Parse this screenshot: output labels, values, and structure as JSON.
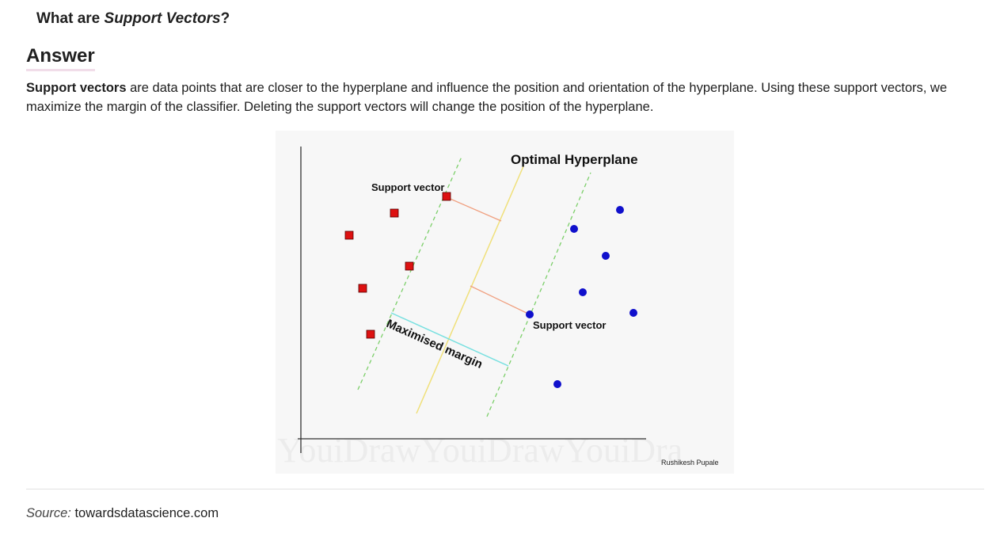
{
  "question": {
    "prefix": "What are ",
    "emphasis": "Support Vectors",
    "suffix": "?"
  },
  "answer": {
    "heading": "Answer",
    "bold_term": "Support vectors",
    "text": " are data points that are closer to the hyperplane and influence the position and orientation of the hyperplane. Using these support vectors, we maximize the margin of the classifier. Deleting the support vectors will change the position of the hyperplane."
  },
  "figure": {
    "title": "Optimal Hyperplane",
    "support_vector_label_top": "Support vector",
    "support_vector_label_bottom": "Support vector",
    "margin_label": "Maximised margin",
    "credit": "Rushikesh Pupale",
    "watermark": "YouiDrawYouiDrawYouiDra",
    "colors": {
      "class_a": "#dd1111",
      "class_b": "#1010cc",
      "hyperplane": "#f0e07a",
      "margin_lines": "#7ccf6a",
      "margin_arrow": "#78e0e0",
      "distance_lines": "#f0a080"
    }
  },
  "source": {
    "label": "Source:",
    "value": "towardsdatascience.com"
  }
}
